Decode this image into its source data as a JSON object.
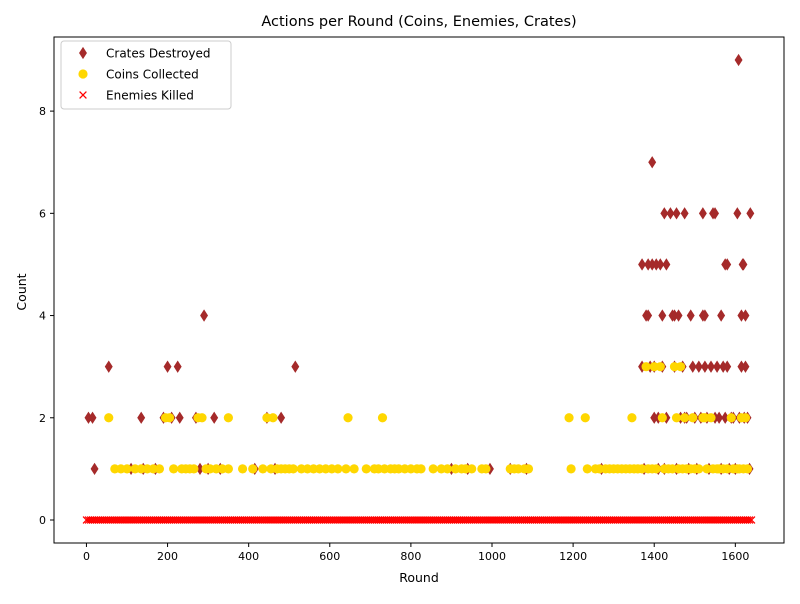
{
  "colors": {
    "crates": "#a52a2a",
    "coins": "#ffd700",
    "enemies": "#ff0000",
    "axis": "#000000",
    "background": "#ffffff"
  },
  "chart_data": {
    "type": "scatter",
    "title": "Actions per Round (Coins, Enemies, Crates)",
    "xlabel": "Round",
    "ylabel": "Count",
    "xlim": [
      -80,
      1720
    ],
    "ylim": [
      -0.45,
      9.45
    ],
    "xticks": [
      0,
      200,
      400,
      600,
      800,
      1000,
      1200,
      1400,
      1600
    ],
    "yticks": [
      0,
      2,
      4,
      6,
      8
    ],
    "grid": false,
    "legend_position": "upper-left",
    "series": [
      {
        "name": "Crates Destroyed",
        "marker": "diamond",
        "color": "#a52a2a",
        "points": [
          [
            5,
            2
          ],
          [
            15,
            2
          ],
          [
            20,
            1
          ],
          [
            55,
            3
          ],
          [
            110,
            1
          ],
          [
            135,
            2
          ],
          [
            140,
            1
          ],
          [
            170,
            1
          ],
          [
            190,
            2
          ],
          [
            200,
            3
          ],
          [
            210,
            2
          ],
          [
            225,
            3
          ],
          [
            230,
            2
          ],
          [
            270,
            2
          ],
          [
            280,
            1
          ],
          [
            290,
            4
          ],
          [
            300,
            1
          ],
          [
            315,
            2
          ],
          [
            330,
            1
          ],
          [
            415,
            1
          ],
          [
            445,
            2
          ],
          [
            465,
            1
          ],
          [
            480,
            2
          ],
          [
            515,
            3
          ],
          [
            900,
            1
          ],
          [
            940,
            1
          ],
          [
            995,
            1
          ],
          [
            1045,
            1
          ],
          [
            1085,
            1
          ],
          [
            1270,
            1
          ],
          [
            1370,
            5
          ],
          [
            1370,
            3
          ],
          [
            1375,
            1
          ],
          [
            1380,
            4
          ],
          [
            1385,
            4
          ],
          [
            1385,
            5
          ],
          [
            1390,
            3
          ],
          [
            1395,
            7
          ],
          [
            1395,
            5
          ],
          [
            1400,
            2
          ],
          [
            1400,
            3
          ],
          [
            1405,
            5
          ],
          [
            1410,
            2
          ],
          [
            1410,
            1
          ],
          [
            1415,
            5
          ],
          [
            1420,
            4
          ],
          [
            1420,
            3
          ],
          [
            1425,
            6
          ],
          [
            1425,
            1
          ],
          [
            1430,
            5
          ],
          [
            1430,
            2
          ],
          [
            1440,
            6
          ],
          [
            1445,
            4
          ],
          [
            1450,
            3
          ],
          [
            1450,
            4
          ],
          [
            1455,
            6
          ],
          [
            1455,
            1
          ],
          [
            1460,
            4
          ],
          [
            1465,
            2
          ],
          [
            1470,
            3
          ],
          [
            1475,
            6
          ],
          [
            1475,
            2
          ],
          [
            1480,
            2
          ],
          [
            1485,
            1
          ],
          [
            1490,
            4
          ],
          [
            1495,
            3
          ],
          [
            1500,
            2
          ],
          [
            1505,
            1
          ],
          [
            1510,
            3
          ],
          [
            1515,
            2
          ],
          [
            1520,
            4
          ],
          [
            1520,
            6
          ],
          [
            1525,
            3
          ],
          [
            1525,
            4
          ],
          [
            1530,
            2
          ],
          [
            1535,
            1
          ],
          [
            1540,
            3
          ],
          [
            1545,
            6
          ],
          [
            1550,
            6
          ],
          [
            1550,
            2
          ],
          [
            1555,
            3
          ],
          [
            1560,
            2
          ],
          [
            1565,
            4
          ],
          [
            1565,
            1
          ],
          [
            1570,
            3
          ],
          [
            1575,
            5
          ],
          [
            1575,
            2
          ],
          [
            1580,
            5
          ],
          [
            1580,
            3
          ],
          [
            1585,
            1
          ],
          [
            1590,
            2
          ],
          [
            1595,
            2
          ],
          [
            1600,
            1
          ],
          [
            1605,
            6
          ],
          [
            1608,
            9
          ],
          [
            1610,
            2
          ],
          [
            1615,
            3
          ],
          [
            1615,
            4
          ],
          [
            1618,
            5
          ],
          [
            1620,
            5
          ],
          [
            1622,
            2
          ],
          [
            1625,
            4
          ],
          [
            1625,
            3
          ],
          [
            1630,
            2
          ],
          [
            1635,
            1
          ],
          [
            1637,
            6
          ]
        ]
      },
      {
        "name": "Coins Collected",
        "marker": "circle",
        "color": "#ffd700",
        "points": [
          [
            55,
            2
          ],
          [
            70,
            1
          ],
          [
            85,
            1
          ],
          [
            100,
            1
          ],
          [
            120,
            1
          ],
          [
            135,
            1
          ],
          [
            150,
            1
          ],
          [
            165,
            1
          ],
          [
            180,
            1
          ],
          [
            195,
            2
          ],
          [
            205,
            2
          ],
          [
            215,
            1
          ],
          [
            235,
            1
          ],
          [
            245,
            1
          ],
          [
            255,
            1
          ],
          [
            265,
            1
          ],
          [
            275,
            2
          ],
          [
            285,
            2
          ],
          [
            295,
            1
          ],
          [
            305,
            1
          ],
          [
            320,
            1
          ],
          [
            335,
            1
          ],
          [
            350,
            2
          ],
          [
            350,
            1
          ],
          [
            385,
            1
          ],
          [
            410,
            1
          ],
          [
            435,
            1
          ],
          [
            445,
            2
          ],
          [
            455,
            1
          ],
          [
            460,
            2
          ],
          [
            470,
            1
          ],
          [
            480,
            1
          ],
          [
            490,
            1
          ],
          [
            500,
            1
          ],
          [
            510,
            1
          ],
          [
            530,
            1
          ],
          [
            545,
            1
          ],
          [
            560,
            1
          ],
          [
            575,
            1
          ],
          [
            590,
            1
          ],
          [
            605,
            1
          ],
          [
            620,
            1
          ],
          [
            640,
            1
          ],
          [
            645,
            2
          ],
          [
            660,
            1
          ],
          [
            690,
            1
          ],
          [
            710,
            1
          ],
          [
            720,
            1
          ],
          [
            730,
            2
          ],
          [
            735,
            1
          ],
          [
            750,
            1
          ],
          [
            760,
            1
          ],
          [
            770,
            1
          ],
          [
            785,
            1
          ],
          [
            800,
            1
          ],
          [
            815,
            1
          ],
          [
            825,
            1
          ],
          [
            855,
            1
          ],
          [
            875,
            1
          ],
          [
            890,
            1
          ],
          [
            910,
            1
          ],
          [
            925,
            1
          ],
          [
            935,
            1
          ],
          [
            950,
            1
          ],
          [
            975,
            1
          ],
          [
            985,
            1
          ],
          [
            1045,
            1
          ],
          [
            1055,
            1
          ],
          [
            1065,
            1
          ],
          [
            1080,
            1
          ],
          [
            1090,
            1
          ],
          [
            1190,
            2
          ],
          [
            1195,
            1
          ],
          [
            1230,
            2
          ],
          [
            1235,
            1
          ],
          [
            1255,
            1
          ],
          [
            1265,
            1
          ],
          [
            1280,
            1
          ],
          [
            1290,
            1
          ],
          [
            1300,
            1
          ],
          [
            1310,
            1
          ],
          [
            1320,
            1
          ],
          [
            1330,
            1
          ],
          [
            1340,
            1
          ],
          [
            1345,
            2
          ],
          [
            1350,
            1
          ],
          [
            1360,
            1
          ],
          [
            1370,
            1
          ],
          [
            1380,
            3
          ],
          [
            1385,
            1
          ],
          [
            1395,
            1
          ],
          [
            1400,
            3
          ],
          [
            1405,
            1
          ],
          [
            1415,
            3
          ],
          [
            1420,
            2
          ],
          [
            1425,
            1
          ],
          [
            1435,
            1
          ],
          [
            1445,
            1
          ],
          [
            1450,
            3
          ],
          [
            1455,
            2
          ],
          [
            1460,
            1
          ],
          [
            1465,
            3
          ],
          [
            1470,
            1
          ],
          [
            1475,
            2
          ],
          [
            1480,
            1
          ],
          [
            1490,
            1
          ],
          [
            1495,
            2
          ],
          [
            1500,
            1
          ],
          [
            1510,
            1
          ],
          [
            1520,
            2
          ],
          [
            1525,
            2
          ],
          [
            1530,
            1
          ],
          [
            1540,
            2
          ],
          [
            1545,
            1
          ],
          [
            1555,
            1
          ],
          [
            1560,
            1
          ],
          [
            1570,
            1
          ],
          [
            1580,
            1
          ],
          [
            1590,
            2
          ],
          [
            1595,
            1
          ],
          [
            1605,
            1
          ],
          [
            1610,
            1
          ],
          [
            1615,
            2
          ],
          [
            1620,
            1
          ],
          [
            1625,
            2
          ],
          [
            1630,
            1
          ]
        ]
      },
      {
        "name": "Enemies Killed",
        "marker": "x",
        "color": "#ff0000",
        "x_start": 0,
        "x_end": 1640,
        "x_step": 5,
        "y_constant": 0
      }
    ]
  }
}
